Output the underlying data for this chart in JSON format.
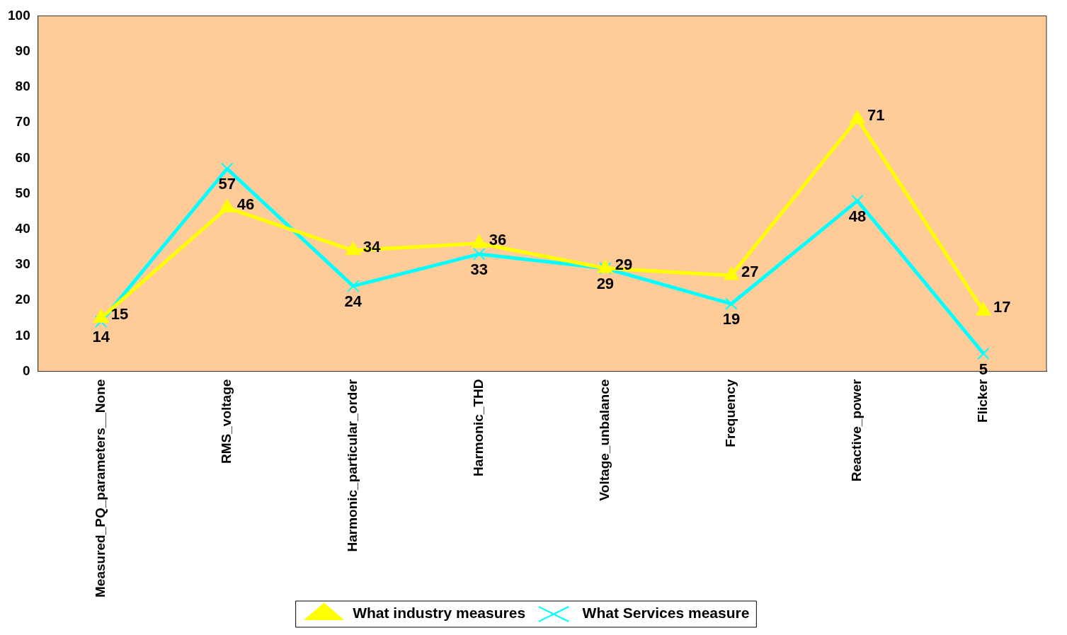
{
  "chart_data": {
    "type": "line",
    "categories": [
      "Measured_PQ_parameters__None",
      "RMS_voltage",
      "Harmonic_particular_order",
      "Harmonic_THD",
      "Voltage_unbalance",
      "Frequency",
      "Reactive_power",
      "Flicker"
    ],
    "series": [
      {
        "name": "What industry measures",
        "color": "#ffff00",
        "marker": "triangle",
        "values": [
          15,
          46,
          34,
          36,
          29,
          27,
          71,
          17
        ]
      },
      {
        "name": "What Services measure",
        "color": "#00ffff",
        "marker": "cross",
        "values": [
          14,
          57,
          24,
          33,
          29,
          19,
          48,
          5
        ]
      }
    ],
    "ylim": [
      0,
      100
    ],
    "yticks": [
      0,
      10,
      20,
      30,
      40,
      50,
      60,
      70,
      80,
      90,
      100
    ],
    "grid": false,
    "legend": "bottom",
    "data_labels": true,
    "line_style": "solid"
  }
}
